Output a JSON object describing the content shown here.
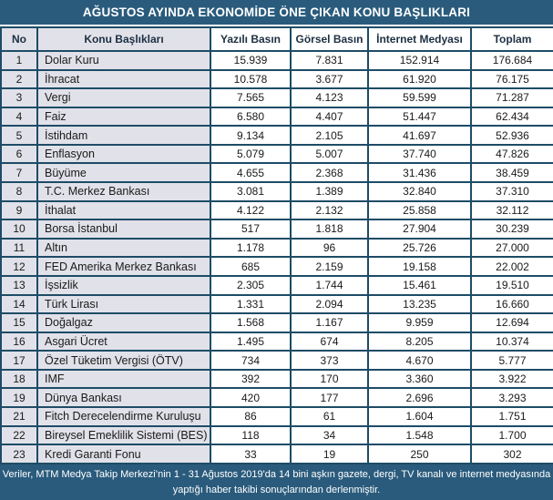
{
  "source_note": "Veriler, MTM Medya Takip Merkezi’nin 1 - 31 Ağustos 2019'da 14 bini aşkın gazete, dergi, TV kanalı ve internet medyasında yaptığı haber takibi sonuçlarından derlenmiştir.",
  "colors": {
    "bar_bg": "#2A5B7C",
    "border": "#1D4C66",
    "label_bg": "#E1E1E9",
    "cell_bg": "#FFFFFF",
    "header_text": "#1C2F42",
    "cell_text": "#1A1A1A",
    "bar_text": "#FFFFFF"
  },
  "chart_data": {
    "type": "table",
    "title": "AĞUSTOS AYINDA EKONOMİDE ÖNE ÇIKAN KONU BAŞLIKLARI",
    "columns": [
      "No",
      "Konu Başlıkları",
      "Yazılı Basın",
      "Görsel Basın",
      "İnternet Medyası",
      "Toplam"
    ],
    "rows": [
      [
        "1",
        "Dolar Kuru",
        "15.939",
        "7.831",
        "152.914",
        "176.684"
      ],
      [
        "2",
        "İhracat",
        "10.578",
        "3.677",
        "61.920",
        "76.175"
      ],
      [
        "3",
        "Vergi",
        "7.565",
        "4.123",
        "59.599",
        "71.287"
      ],
      [
        "4",
        "Faiz",
        "6.580",
        "4.407",
        "51.447",
        "62.434"
      ],
      [
        "5",
        "İstihdam",
        "9.134",
        "2.105",
        "41.697",
        "52.936"
      ],
      [
        "6",
        "Enflasyon",
        "5.079",
        "5.007",
        "37.740",
        "47.826"
      ],
      [
        "7",
        "Büyüme",
        "4.655",
        "2.368",
        "31.436",
        "38.459"
      ],
      [
        "8",
        "T.C. Merkez Bankası",
        "3.081",
        "1.389",
        "32.840",
        "37.310"
      ],
      [
        "9",
        "İthalat",
        "4.122",
        "2.132",
        "25.858",
        "32.112"
      ],
      [
        "10",
        "Borsa İstanbul",
        "517",
        "1.818",
        "27.904",
        "30.239"
      ],
      [
        "11",
        "Altın",
        "1.178",
        "96",
        "25.726",
        "27.000"
      ],
      [
        "12",
        "FED Amerika Merkez Bankası",
        "685",
        "2.159",
        "19.158",
        "22.002"
      ],
      [
        "13",
        "İşsizlik",
        "2.305",
        "1.744",
        "15.461",
        "19.510"
      ],
      [
        "14",
        "Türk Lirası",
        "1.331",
        "2.094",
        "13.235",
        "16.660"
      ],
      [
        "15",
        "Doğalgaz",
        "1.568",
        "1.167",
        "9.959",
        "12.694"
      ],
      [
        "16",
        "Asgari Ücret",
        "1.495",
        "674",
        "8.205",
        "10.374"
      ],
      [
        "17",
        "Özel Tüketim Vergisi (ÖTV)",
        "734",
        "373",
        "4.670",
        "5.777"
      ],
      [
        "18",
        "IMF",
        "392",
        "170",
        "3.360",
        "3.922"
      ],
      [
        "19",
        "Dünya Bankası",
        "420",
        "177",
        "2.696",
        "3.293"
      ],
      [
        "21",
        "Fitch Derecelendirme Kuruluşu",
        "86",
        "61",
        "1.604",
        "1.751"
      ],
      [
        "22",
        "Bireysel Emeklilik Sistemi (BES)",
        "118",
        "34",
        "1.548",
        "1.700"
      ],
      [
        "23",
        "Kredi Garanti Fonu",
        "33",
        "19",
        "250",
        "302"
      ]
    ]
  }
}
